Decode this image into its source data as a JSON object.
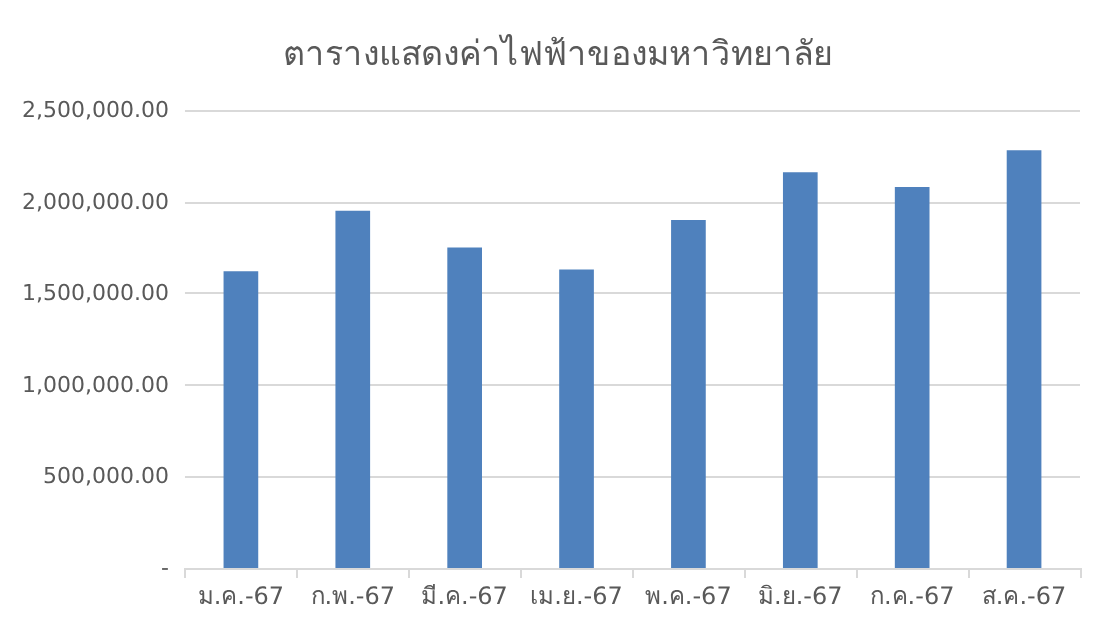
{
  "chart_data": {
    "type": "bar",
    "title": "ตารางแสดงค่าไฟฟ้าของมหาวิทยาลัย",
    "categories": [
      "ม.ค.-67",
      "ก.พ.-67",
      "มี.ค.-67",
      "เม.ย.-67",
      "พ.ค.-67",
      "มิ.ย.-67",
      "ก.ค.-67",
      "ส.ค.-67"
    ],
    "values": [
      1620000,
      1950000,
      1750000,
      1630000,
      1900000,
      2160000,
      2080000,
      2280000
    ],
    "color": "#4f81bd",
    "ylim": [
      0,
      2500000
    ],
    "yticks": [
      {
        "value": 0,
        "label": "-"
      },
      {
        "value": 500000,
        "label": "500,000.00"
      },
      {
        "value": 1000000,
        "label": "1,000,000.00"
      },
      {
        "value": 1500000,
        "label": "1,500,000.00"
      },
      {
        "value": 2000000,
        "label": "2,000,000.00"
      },
      {
        "value": 2500000,
        "label": "2,500,000.00"
      }
    ],
    "grid": "y"
  }
}
